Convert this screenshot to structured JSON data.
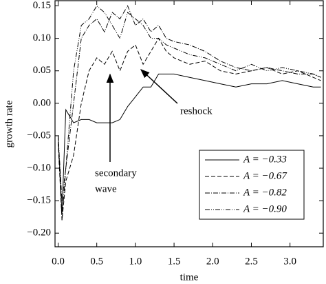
{
  "chart_data": {
    "type": "line",
    "xlabel": "time",
    "ylabel": "growth rate",
    "xlim": [
      -0.04,
      3.43
    ],
    "ylim": [
      -0.221,
      0.158
    ],
    "xticks": [
      {
        "value": 0,
        "label": "0.0"
      },
      0.5,
      {
        "value": 1,
        "label": "1.0"
      },
      1.5,
      {
        "value": 2,
        "label": "2.0"
      },
      2.5,
      {
        "value": 3,
        "label": "3.0"
      }
    ],
    "yticks": [
      {
        "value": 0.15,
        "label": "0.15"
      },
      {
        "value": 0.1,
        "label": "0.10"
      },
      {
        "value": 0.05,
        "label": "0.05"
      },
      {
        "value": 0,
        "label": "0.00"
      },
      {
        "value": -0.05,
        "label": "−0.05"
      },
      {
        "value": -0.1,
        "label": "−0.10"
      },
      {
        "value": -0.15,
        "label": "−0.15"
      },
      {
        "value": -0.2,
        "label": "−0.20"
      }
    ],
    "legend": "lower right",
    "annotations": [
      {
        "lines": [
          "secondary",
          "wave"
        ]
      },
      {
        "lines": [
          "reshock"
        ]
      }
    ],
    "x": [
      0,
      0.05,
      0.1,
      0.2,
      0.3,
      0.4,
      0.5,
      0.6,
      0.7,
      0.8,
      0.9,
      1.0,
      1.1,
      1.2,
      1.3,
      1.4,
      1.5,
      1.7,
      1.9,
      2.1,
      2.3,
      2.5,
      2.7,
      2.9,
      3.1,
      3.3,
      3.4
    ],
    "series": [
      {
        "name": "A = −0.33",
        "color": "#000",
        "dash": "none",
        "values": [
          -0.05,
          -0.17,
          -0.01,
          -0.03,
          -0.025,
          -0.025,
          -0.03,
          -0.03,
          -0.03,
          -0.025,
          -0.005,
          0.01,
          0.025,
          0.025,
          0.045,
          0.045,
          0.045,
          0.04,
          0.035,
          0.03,
          0.025,
          0.03,
          0.03,
          0.035,
          0.03,
          0.025,
          0.025
        ]
      },
      {
        "name": "A = −0.67",
        "color": "#000",
        "dash": "6,3",
        "values": [
          -0.06,
          -0.18,
          -0.12,
          -0.08,
          0.0,
          0.05,
          0.07,
          0.06,
          0.08,
          0.05,
          0.08,
          0.09,
          0.06,
          0.08,
          0.1,
          0.08,
          0.07,
          0.06,
          0.065,
          0.05,
          0.045,
          0.05,
          0.055,
          0.045,
          0.05,
          0.04,
          0.035
        ]
      },
      {
        "name": "A = −0.82",
        "color": "#000",
        "dash": "7,2,1,2",
        "values": [
          -0.05,
          -0.15,
          -0.1,
          0.0,
          0.1,
          0.12,
          0.13,
          0.11,
          0.14,
          0.13,
          0.15,
          0.12,
          0.13,
          0.11,
          0.12,
          0.1,
          0.095,
          0.09,
          0.08,
          0.065,
          0.055,
          0.05,
          0.055,
          0.05,
          0.045,
          0.045,
          0.04
        ]
      },
      {
        "name": "A = −0.90",
        "color": "#000",
        "dash": "7,2,1,2,1,2",
        "values": [
          -0.05,
          -0.18,
          -0.1,
          0.05,
          0.12,
          0.13,
          0.15,
          0.14,
          0.12,
          0.1,
          0.14,
          0.13,
          0.12,
          0.1,
          0.1,
          0.09,
          0.085,
          0.075,
          0.07,
          0.06,
          0.05,
          0.06,
          0.05,
          0.055,
          0.05,
          0.045,
          0.04
        ]
      }
    ]
  }
}
